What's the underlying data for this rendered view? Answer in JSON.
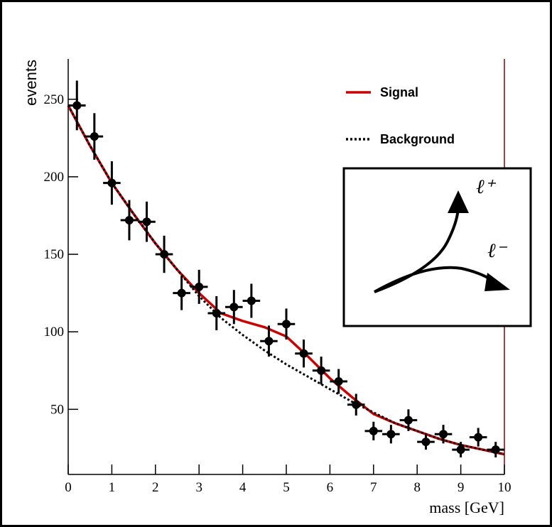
{
  "chart_data": {
    "type": "errorbar",
    "x_label": "mass [GeV]",
    "y_label": "events",
    "xlim": [
      0,
      10
    ],
    "ylim": [
      8,
      276
    ],
    "xticks": [
      0,
      1,
      2,
      3,
      4,
      5,
      6,
      7,
      8,
      9,
      10
    ],
    "yticks": [
      50,
      100,
      150,
      200,
      250
    ],
    "points": {
      "color": "#000000",
      "x": [
        0.2,
        0.6,
        1.0,
        1.4,
        1.8,
        2.2,
        2.6,
        3.0,
        3.4,
        3.8,
        4.2,
        4.6,
        5.0,
        5.4,
        5.8,
        6.2,
        6.6,
        7.0,
        7.4,
        7.8,
        8.2,
        8.6,
        9.0,
        9.4,
        9.8
      ],
      "values": [
        246,
        226,
        196,
        172,
        171,
        150,
        125,
        129,
        112,
        116,
        120,
        94,
        105,
        86,
        75,
        68,
        53,
        36,
        34,
        43,
        29,
        34,
        24,
        32,
        24
      ],
      "errors": [
        16,
        15,
        14,
        13,
        13,
        12,
        11,
        11,
        11,
        11,
        11,
        10,
        10,
        9,
        9,
        8,
        7,
        6,
        6,
        7,
        5,
        6,
        5,
        6,
        5
      ],
      "xerr": 0.2
    },
    "series": [
      {
        "name": "Signal",
        "color": "#cc0000",
        "style": "solid",
        "x": [
          0,
          0.5,
          1,
          1.5,
          2,
          2.5,
          3,
          3.5,
          4,
          4.5,
          5,
          5.5,
          6,
          6.5,
          7,
          7.5,
          8,
          8.5,
          9,
          9.5,
          10
        ],
        "values": [
          246,
          220,
          196,
          176,
          157,
          140,
          125,
          112,
          107,
          103,
          97,
          84,
          70,
          58,
          47,
          41,
          36,
          31,
          27,
          24,
          21
        ]
      },
      {
        "name": "Background",
        "color": "#000000",
        "style": "dotted",
        "x": [
          0,
          0.5,
          1,
          1.5,
          2,
          2.5,
          3,
          3.5,
          4,
          4.5,
          5,
          5.5,
          6,
          6.5,
          7,
          7.5,
          8,
          8.5,
          9,
          9.5,
          10
        ],
        "values": [
          246,
          220,
          196,
          176,
          157,
          140,
          123,
          109,
          98,
          88,
          79,
          71,
          63,
          55,
          48,
          41,
          36,
          31,
          27,
          24,
          21
        ]
      }
    ],
    "inset_labels": [
      "ℓ⁺",
      "ℓ⁻"
    ]
  }
}
